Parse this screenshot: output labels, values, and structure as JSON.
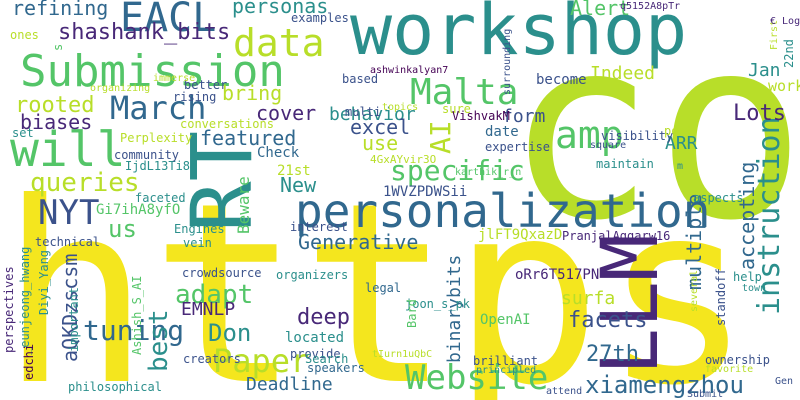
{
  "cloud": {
    "palette": {
      "yellow": "#f4e61e",
      "lime": "#b8de29",
      "green": "#54c568",
      "teal": "#2b8f8c",
      "blue": "#31688e",
      "navy": "#3b528b",
      "purple": "#440154",
      "indigo": "#482878"
    },
    "words": [
      {
        "text": "https"
      },
      {
        "text": "co"
      },
      {
        "text": "workshop"
      },
      {
        "text": "personalization"
      },
      {
        "text": "Submission"
      },
      {
        "text": "LLM"
      },
      {
        "text": "RT"
      },
      {
        "text": "will"
      },
      {
        "text": "amp"
      },
      {
        "text": "Website"
      },
      {
        "text": "Paper"
      },
      {
        "text": "EACL"
      },
      {
        "text": "Malta"
      },
      {
        "text": "March"
      },
      {
        "text": "data"
      },
      {
        "text": "specific"
      },
      {
        "text": "instruction"
      },
      {
        "text": "NYT"
      },
      {
        "text": "AI"
      },
      {
        "text": "shashank_bits"
      },
      {
        "text": "queries"
      },
      {
        "text": "tuning"
      },
      {
        "text": "xiamengzhou"
      },
      {
        "text": "Generative"
      },
      {
        "text": "adapt"
      },
      {
        "text": "best"
      },
      {
        "text": "Don"
      },
      {
        "text": "deep"
      },
      {
        "text": "aQKDzscsm"
      },
      {
        "text": "personas"
      },
      {
        "text": "behavior"
      },
      {
        "text": "refining"
      },
      {
        "text": "form"
      },
      {
        "text": "Alert"
      },
      {
        "text": "rooted"
      },
      {
        "text": "biases"
      },
      {
        "text": "bring"
      },
      {
        "text": "cover"
      },
      {
        "text": "excel"
      },
      {
        "text": "use"
      },
      {
        "text": "Lots"
      },
      {
        "text": "Indeed"
      },
      {
        "text": "become"
      },
      {
        "text": "Jan"
      },
      {
        "text": "work"
      },
      {
        "text": "featured"
      },
      {
        "text": "ARR"
      },
      {
        "text": "us"
      },
      {
        "text": "New"
      },
      {
        "text": "Beware"
      },
      {
        "text": "accepting"
      },
      {
        "text": "multiple"
      },
      {
        "text": "surfa"
      },
      {
        "text": "facets"
      },
      {
        "text": "27th"
      },
      {
        "text": "Deadline"
      },
      {
        "text": "binarybits"
      },
      {
        "text": "EMNLP"
      },
      {
        "text": "Check"
      },
      {
        "text": "1WVZPDWSii"
      },
      {
        "text": "jlFT9QxazD"
      },
      {
        "text": "oRr6T517PN"
      },
      {
        "text": "PranjalAggarw16"
      },
      {
        "text": "OpenAI"
      },
      {
        "text": "Gi7ihA8yfO"
      },
      {
        "text": "located"
      },
      {
        "text": "provide"
      },
      {
        "text": "legal"
      },
      {
        "text": "speakers"
      },
      {
        "text": "Search"
      },
      {
        "text": "creators"
      },
      {
        "text": "organizers"
      },
      {
        "text": "crowdsource"
      },
      {
        "text": "vein"
      },
      {
        "text": "Engines"
      },
      {
        "text": "technical"
      },
      {
        "text": "interest"
      },
      {
        "text": "21st"
      },
      {
        "text": "date"
      },
      {
        "text": "multi"
      },
      {
        "text": "based"
      },
      {
        "text": "ashwinkalyan7"
      },
      {
        "text": "topics"
      },
      {
        "text": "sure"
      },
      {
        "text": "VishvakM"
      },
      {
        "text": "expertise"
      },
      {
        "text": "4GxAYvir3O"
      },
      {
        "text": "karthik_r_n"
      },
      {
        "text": "joon_s_pk"
      },
      {
        "text": "conversations"
      },
      {
        "text": "IjdL13Ti8e"
      },
      {
        "text": "Perplexity"
      },
      {
        "text": "community"
      },
      {
        "text": "faceted"
      },
      {
        "text": "rising"
      },
      {
        "text": "organizing"
      },
      {
        "text": "better"
      },
      {
        "text": "immerse"
      },
      {
        "text": "examples"
      },
      {
        "text": "q5152A8pTr"
      },
      {
        "text": "ones"
      },
      {
        "text": "set"
      },
      {
        "text": "b3c2Sixtts"
      },
      {
        "text": "s"
      },
      {
        "text": "perspectives"
      },
      {
        "text": "_eunjeong_hwang"
      },
      {
        "text": "Diyi_Yang"
      },
      {
        "text": "edchi"
      },
      {
        "text": "important"
      },
      {
        "text": "philosophical"
      },
      {
        "text": "Ashish_S_AI"
      },
      {
        "text": "Bard"
      },
      {
        "text": "tIurn1uQbC"
      },
      {
        "text": "principled"
      },
      {
        "text": "brilliant"
      },
      {
        "text": "attend"
      },
      {
        "text": "Submit"
      },
      {
        "text": "ownership"
      },
      {
        "text": "favorite"
      },
      {
        "text": "Gen"
      },
      {
        "text": "help"
      },
      {
        "text": "town"
      },
      {
        "text": "standoff"
      },
      {
        "text": "several"
      },
      {
        "text": "maintain"
      },
      {
        "text": "aspects"
      },
      {
        "text": "visibility"
      },
      {
        "text": "square"
      },
      {
        "text": "post"
      },
      {
        "text": "m"
      },
      {
        "text": "surrounding"
      },
      {
        "text": "22nd"
      },
      {
        "text": "First"
      },
      {
        "text": "€ Log"
      }
    ]
  }
}
